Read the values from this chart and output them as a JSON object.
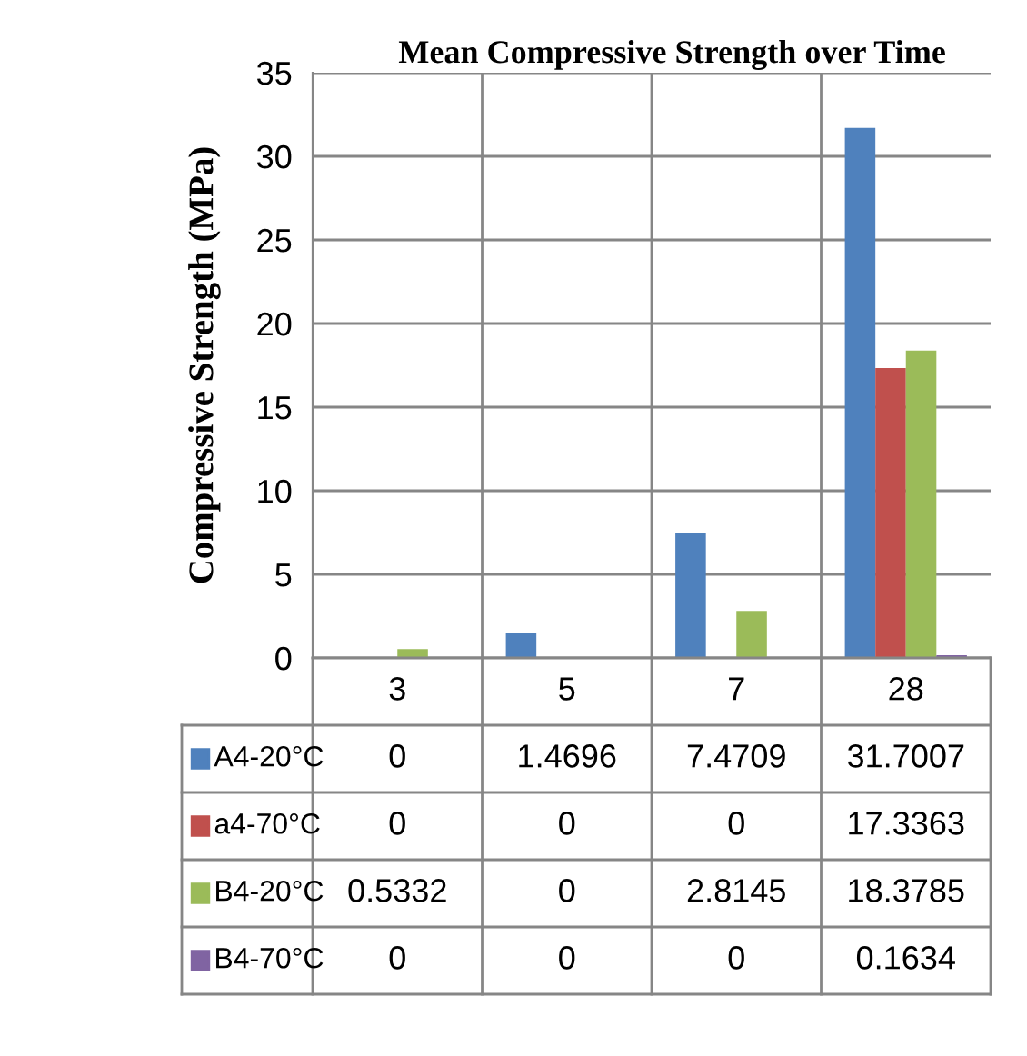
{
  "chart_data": {
    "type": "bar",
    "title": "Mean Compressive Strength over Time",
    "ylabel": "Compressive Strength (MPa)",
    "categories": [
      "3",
      "5",
      "7",
      "28"
    ],
    "series": [
      {
        "name": "A4-20°C",
        "color": "#4f81bd",
        "values": [
          0,
          1.4696,
          7.4709,
          31.7007
        ]
      },
      {
        "name": "a4-70°C",
        "color": "#c0504d",
        "values": [
          0,
          0,
          0,
          17.3363
        ]
      },
      {
        "name": "B4-20°C",
        "color": "#9bbb59",
        "values": [
          0.5332,
          0,
          2.8145,
          18.3785
        ]
      },
      {
        "name": "B4-70°C",
        "color": "#8064a2",
        "values": [
          0,
          0,
          0,
          0.1634
        ]
      }
    ],
    "ylim": [
      0,
      35
    ],
    "yticks": [
      0,
      5,
      10,
      15,
      20,
      25,
      30,
      35
    ],
    "grid": true,
    "data_labels": true,
    "legend": "bottom left"
  }
}
